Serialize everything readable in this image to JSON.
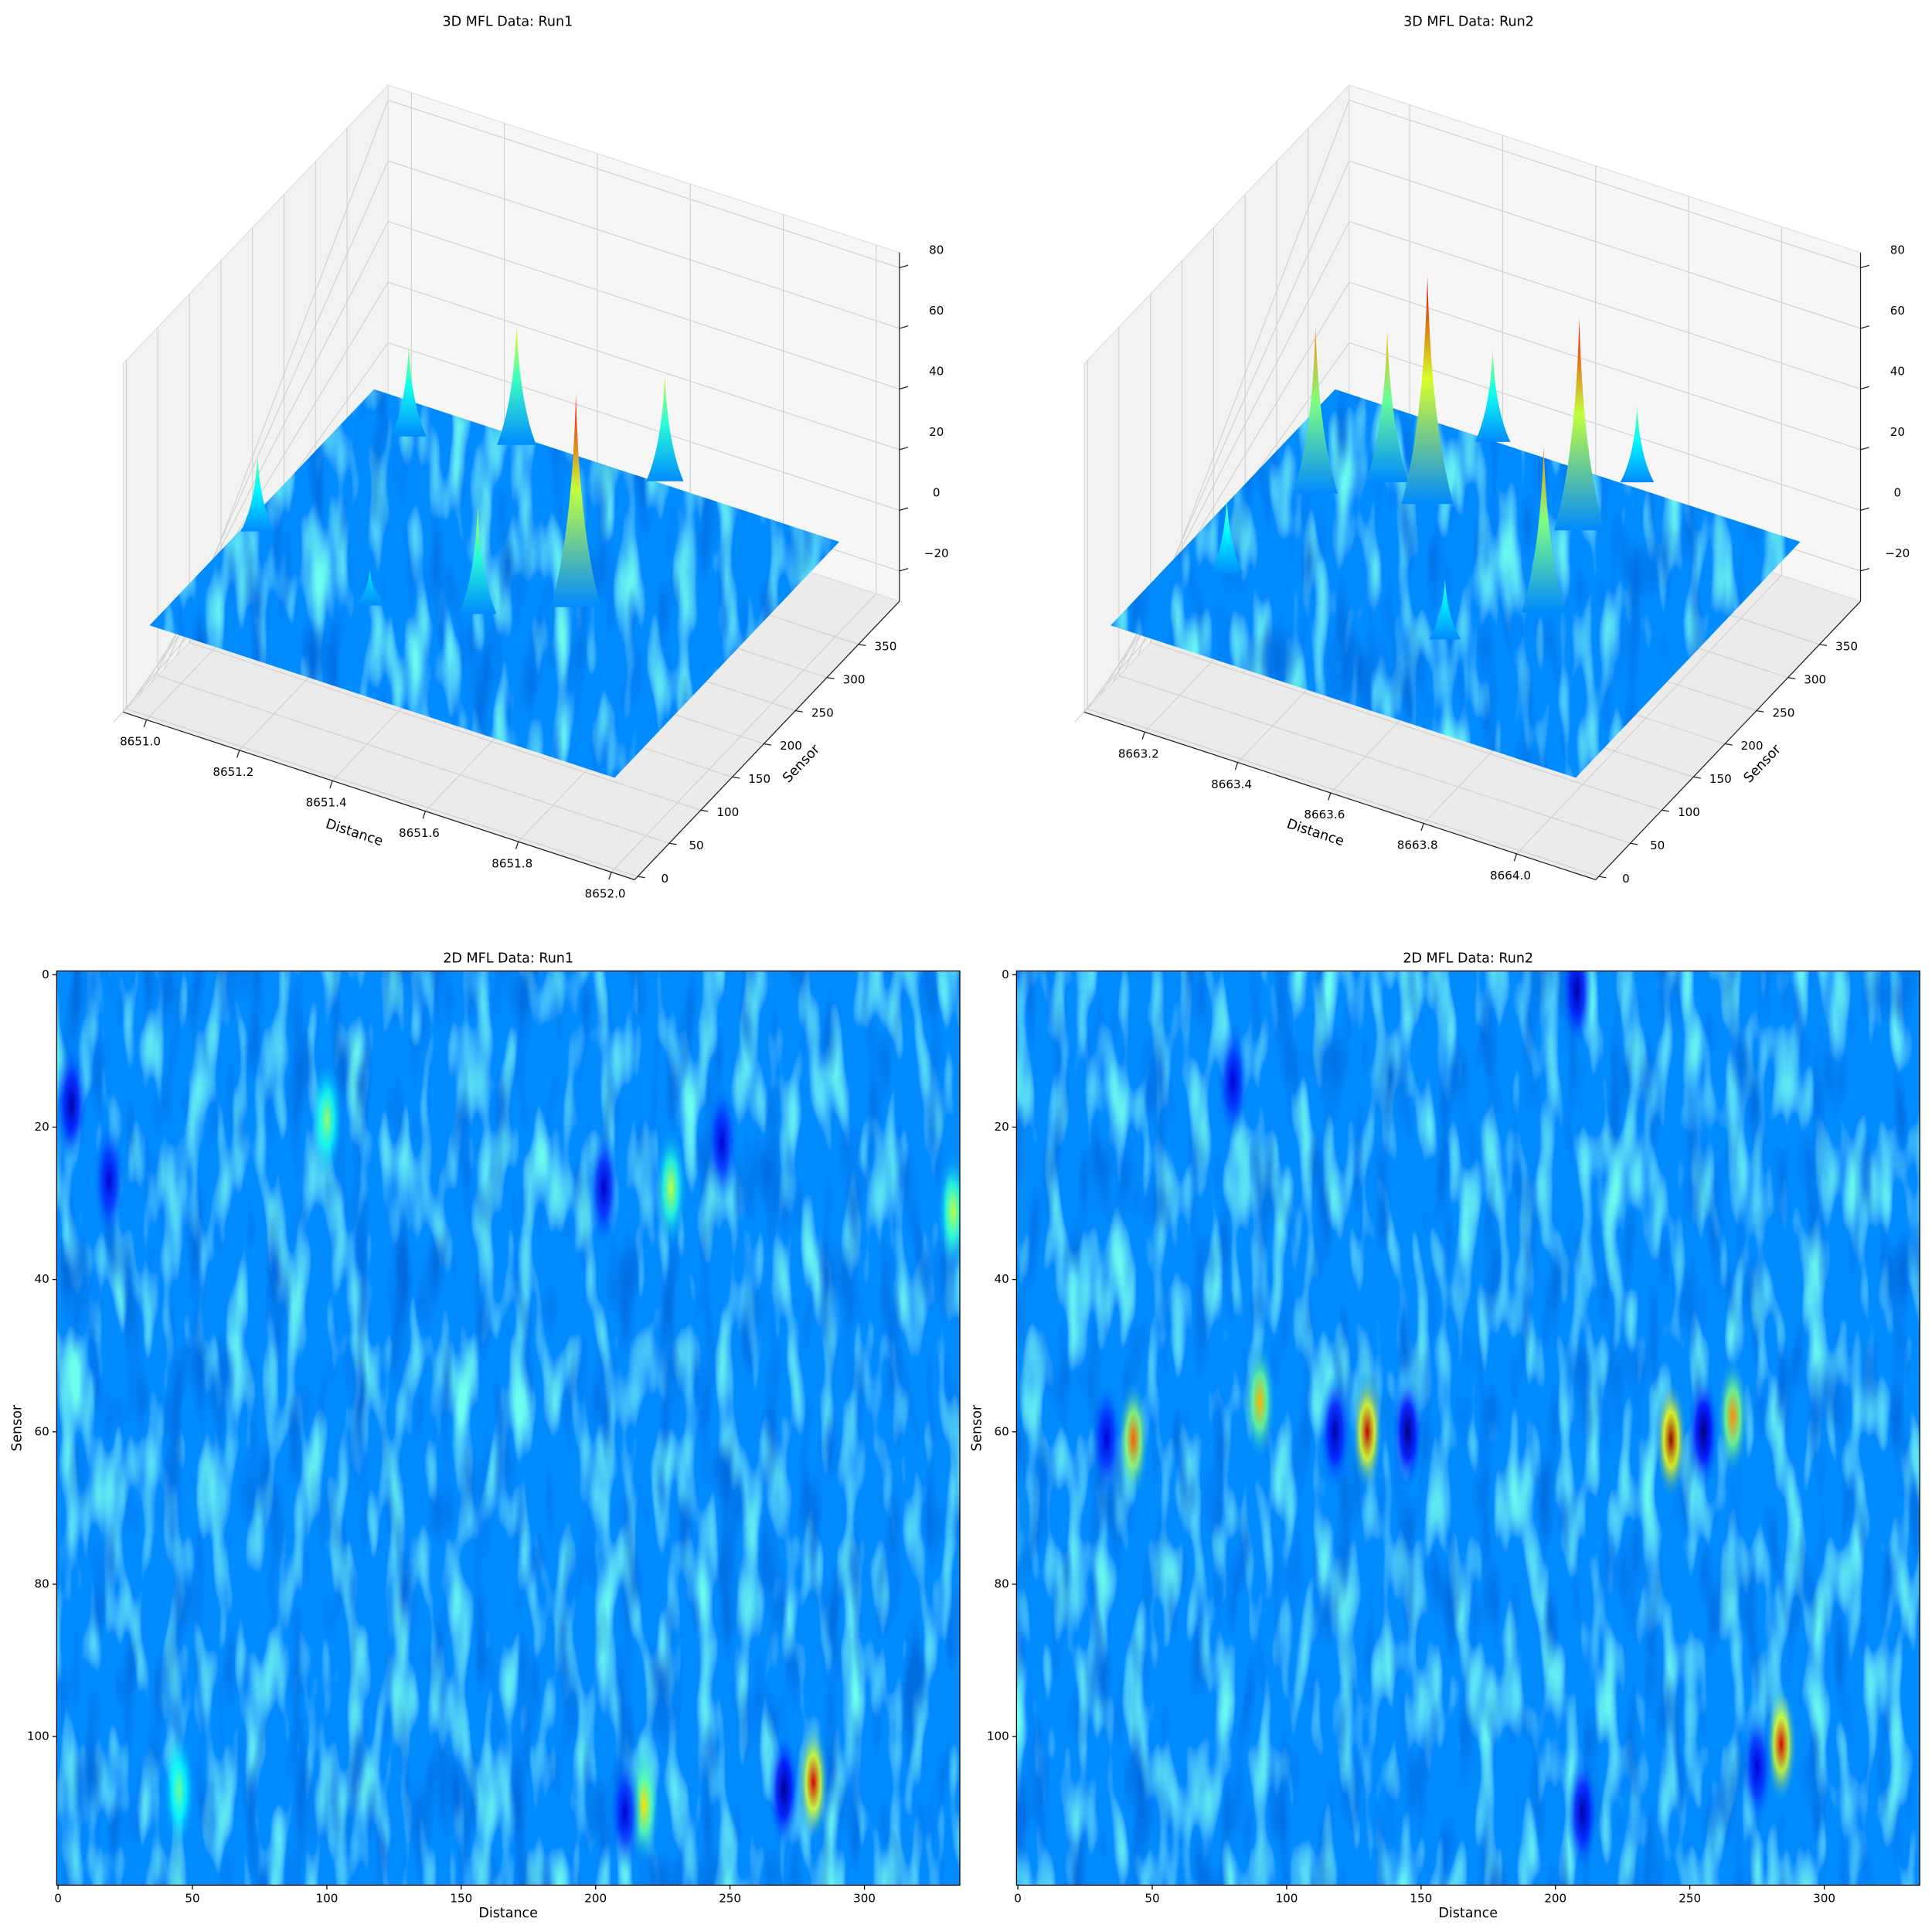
{
  "chart_data": [
    {
      "type": "surface3d",
      "title": "3D MFL Data: Run1",
      "xlabel": "Distance",
      "ylabel": "Sensor",
      "xlim": [
        8650.95,
        8652.05
      ],
      "ylim": [
        -5,
        415
      ],
      "zlim": [
        -30,
        85
      ],
      "xticks": [
        {
          "value": 8651.0,
          "label": "8651.0"
        },
        8651.2,
        8651.4,
        8651.6,
        8651.8,
        {
          "value": 8652.0,
          "label": "8652.0"
        }
      ],
      "yticks": [
        0,
        50,
        100,
        150,
        200,
        250,
        300,
        350
      ],
      "zticks": [
        {
          "value": -20,
          "label": "−20"
        },
        0,
        20,
        40,
        60,
        80
      ],
      "colormap": "jet",
      "grid": true,
      "peaks": [
        {
          "x": 8651.32,
          "y": 346,
          "z": 40
        },
        {
          "x": 8651.62,
          "y": 360,
          "z": 35
        },
        {
          "x": 8651.13,
          "y": 315,
          "z": 30
        },
        {
          "x": 8651.03,
          "y": 149,
          "z": 25
        },
        {
          "x": 8651.67,
          "y": 182,
          "z": 70
        },
        {
          "x": 8651.52,
          "y": 137,
          "z": 35
        },
        {
          "x": 8651.33,
          "y": 106,
          "z": 12
        }
      ]
    },
    {
      "type": "surface3d",
      "title": "3D MFL Data: Run2",
      "xlabel": "Distance",
      "ylabel": "Sensor",
      "xlim": [
        8663.07,
        8664.17
      ],
      "ylim": [
        -5,
        415
      ],
      "zlim": [
        -30,
        85
      ],
      "xticks": [
        8663.2,
        8663.4,
        8663.6,
        8663.8,
        {
          "value": 8664.0,
          "label": "8664.0"
        }
      ],
      "yticks": [
        0,
        50,
        100,
        150,
        200,
        250,
        300,
        350
      ],
      "zticks": [
        {
          "value": -20,
          "label": "−20"
        },
        0,
        20,
        40,
        60,
        80
      ],
      "colormap": "jet",
      "grid": true,
      "peaks": [
        {
          "x": 8663.46,
          "y": 355,
          "z": 30
        },
        {
          "x": 8663.76,
          "y": 363,
          "z": 25
        },
        {
          "x": 8663.35,
          "y": 269,
          "z": 50
        },
        {
          "x": 8663.45,
          "y": 259,
          "z": 75
        },
        {
          "x": 8663.74,
          "y": 286,
          "z": 70
        },
        {
          "x": 8663.25,
          "y": 229,
          "z": 55
        },
        {
          "x": 8663.81,
          "y": 178,
          "z": 55
        },
        {
          "x": 8663.23,
          "y": 103,
          "z": 25
        },
        {
          "x": 8663.69,
          "y": 110,
          "z": 20
        }
      ]
    },
    {
      "type": "heatmap",
      "title": "2D MFL Data: Run1",
      "xlabel": "Distance",
      "ylabel": "Sensor",
      "xlim": [
        -0.5,
        335.5
      ],
      "ylim": [
        119.5,
        -0.5
      ],
      "clim": [
        -30,
        85
      ],
      "xticks": [
        0,
        50,
        100,
        150,
        200,
        250,
        300
      ],
      "yticks": [
        0,
        20,
        40,
        60,
        80,
        100
      ],
      "colormap": "jet",
      "blobs": [
        {
          "x": 281,
          "y": 106,
          "value": 75
        },
        {
          "x": 270,
          "y": 107,
          "value": -28
        },
        {
          "x": 218,
          "y": 109,
          "value": 45
        },
        {
          "x": 211,
          "y": 110,
          "value": -20
        },
        {
          "x": 45,
          "y": 107,
          "value": 25
        },
        {
          "x": 100,
          "y": 19,
          "value": 30
        },
        {
          "x": 228,
          "y": 28,
          "value": 35
        },
        {
          "x": 333,
          "y": 31,
          "value": 35
        },
        {
          "x": 5,
          "y": 17,
          "value": -25
        },
        {
          "x": 19,
          "y": 27,
          "value": -20
        },
        {
          "x": 203,
          "y": 28,
          "value": -22
        },
        {
          "x": 247,
          "y": 22,
          "value": -20
        }
      ]
    },
    {
      "type": "heatmap",
      "title": "2D MFL Data: Run2",
      "xlabel": "Distance",
      "ylabel": "Sensor",
      "xlim": [
        -0.5,
        335.5
      ],
      "ylim": [
        119.5,
        -0.5
      ],
      "clim": [
        -30,
        85
      ],
      "xticks": [
        0,
        50,
        100,
        150,
        200,
        250,
        300
      ],
      "yticks": [
        0,
        20,
        40,
        60,
        80,
        100
      ],
      "colormap": "jet",
      "blobs": [
        {
          "x": 43,
          "y": 61,
          "value": 60
        },
        {
          "x": 33,
          "y": 61,
          "value": -20
        },
        {
          "x": 90,
          "y": 56,
          "value": 50
        },
        {
          "x": 130,
          "y": 60,
          "value": 78
        },
        {
          "x": 118,
          "y": 60,
          "value": -25
        },
        {
          "x": 145,
          "y": 60,
          "value": -30
        },
        {
          "x": 243,
          "y": 61,
          "value": 82
        },
        {
          "x": 255,
          "y": 60,
          "value": -30
        },
        {
          "x": 266,
          "y": 58,
          "value": 55
        },
        {
          "x": 284,
          "y": 101,
          "value": 75
        },
        {
          "x": 210,
          "y": 110,
          "value": -25
        },
        {
          "x": 80,
          "y": 14,
          "value": -20
        },
        {
          "x": 208,
          "y": 2,
          "value": -25
        },
        {
          "x": 275,
          "y": 104,
          "value": -20
        }
      ]
    }
  ]
}
